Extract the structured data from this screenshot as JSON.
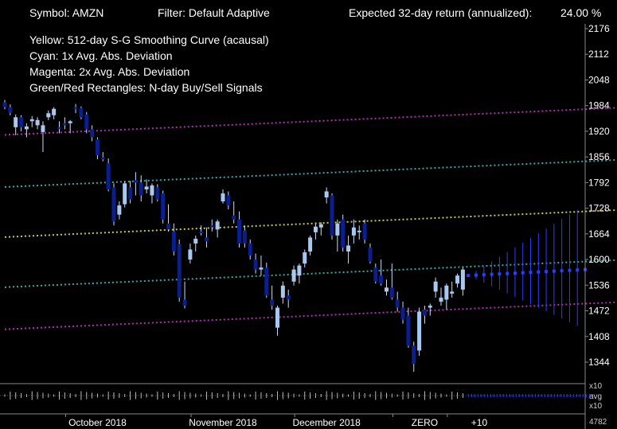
{
  "header": {
    "symbol": "Symbol: AMZN",
    "filter": "Filter: Default Adaptive",
    "expected_label": "Expected 32-day return (annualized):",
    "expected_value": "24.00 %"
  },
  "legend": [
    "Yellow: 512-day S-G Smoothing Curve (acausal)",
    "Cyan:      1x Avg. Abs. Deviation",
    "Magenta: 2x Avg. Abs. Deviation",
    "Green/Red Rectangles: N-day Buy/Sell Signals"
  ],
  "colors": {
    "background": "#000000",
    "bull_candle": "#a8c8f0",
    "bear_candle": "#0a1e8c",
    "smoothing": "#c8c850",
    "dev1": "#3aa8a8",
    "dev2": "#b030b0",
    "forecast": "#2a3cff",
    "text": "#ffffff"
  },
  "chart_data": {
    "type": "candlestick",
    "ylim": [
      1280,
      2200
    ],
    "y_ticks": [
      2176,
      2112,
      2048,
      1984,
      1920,
      1856,
      1792,
      1728,
      1664,
      1600,
      1536,
      1472,
      1408,
      1344
    ],
    "x_labels": [
      {
        "label": "October 2018",
        "at": 17
      },
      {
        "label": "November 2018",
        "at": 40
      },
      {
        "label": "December 2018",
        "at": 59
      },
      {
        "label": "ZERO",
        "at": 77
      },
      {
        "label": "+10",
        "at": 87
      }
    ],
    "volume_axis": {
      "top": "x10",
      "mid": "avg",
      "bottom": "x10"
    },
    "volume_value": "4782",
    "candles": [
      [
        1992,
        1998,
        1975,
        1980
      ],
      [
        1980,
        1987,
        1960,
        1966
      ],
      [
        1930,
        1962,
        1910,
        1955
      ],
      [
        1955,
        1960,
        1920,
        1930
      ],
      [
        1925,
        1940,
        1905,
        1932
      ],
      [
        1945,
        1958,
        1930,
        1950
      ],
      [
        1935,
        1955,
        1925,
        1948
      ],
      [
        1918,
        1945,
        1868,
        1935
      ],
      [
        1955,
        1972,
        1948,
        1965
      ],
      [
        1960,
        1980,
        1950,
        1976
      ],
      [
        1930,
        1945,
        1915,
        1928
      ],
      [
        1940,
        1955,
        1925,
        1935
      ],
      [
        1940,
        1948,
        1915,
        1945
      ],
      [
        1980,
        1988,
        1965,
        1975
      ],
      [
        1978,
        1982,
        1950,
        1955
      ],
      [
        1962,
        1968,
        1915,
        1925
      ],
      [
        1925,
        1935,
        1895,
        1905
      ],
      [
        1900,
        1905,
        1850,
        1860
      ],
      [
        1855,
        1868,
        1845,
        1850
      ],
      [
        1840,
        1852,
        1770,
        1775
      ],
      [
        1780,
        1790,
        1685,
        1695
      ],
      [
        1712,
        1745,
        1700,
        1735
      ],
      [
        1738,
        1795,
        1730,
        1790
      ],
      [
        1780,
        1796,
        1740,
        1750
      ],
      [
        1798,
        1818,
        1760,
        1792
      ],
      [
        1792,
        1810,
        1745,
        1760
      ],
      [
        1775,
        1800,
        1765,
        1782
      ],
      [
        1760,
        1790,
        1740,
        1785
      ],
      [
        1780,
        1788,
        1745,
        1750
      ],
      [
        1765,
        1772,
        1690,
        1700
      ],
      [
        1690,
        1738,
        1670,
        1675
      ],
      [
        1670,
        1690,
        1610,
        1620
      ],
      [
        1638,
        1650,
        1495,
        1505
      ],
      [
        1500,
        1545,
        1478,
        1485
      ],
      [
        1600,
        1640,
        1590,
        1625
      ],
      [
        1640,
        1660,
        1620,
        1652
      ],
      [
        1670,
        1685,
        1660,
        1668
      ],
      [
        1655,
        1680,
        1630,
        1645
      ],
      [
        1685,
        1700,
        1670,
        1680
      ],
      [
        1675,
        1700,
        1655,
        1695
      ],
      [
        1745,
        1775,
        1740,
        1765
      ],
      [
        1760,
        1770,
        1725,
        1735
      ],
      [
        1710,
        1745,
        1690,
        1700
      ],
      [
        1700,
        1720,
        1630,
        1640
      ],
      [
        1672,
        1685,
        1630,
        1640
      ],
      [
        1640,
        1650,
        1600,
        1610
      ],
      [
        1600,
        1615,
        1565,
        1575
      ],
      [
        1575,
        1610,
        1560,
        1580
      ],
      [
        1580,
        1592,
        1505,
        1510
      ],
      [
        1500,
        1535,
        1475,
        1485
      ],
      [
        1430,
        1485,
        1410,
        1480
      ],
      [
        1505,
        1545,
        1490,
        1535
      ],
      [
        1510,
        1525,
        1480,
        1500
      ],
      [
        1545,
        1585,
        1535,
        1575
      ],
      [
        1560,
        1590,
        1540,
        1585
      ],
      [
        1590,
        1625,
        1580,
        1618
      ],
      [
        1620,
        1660,
        1610,
        1655
      ],
      [
        1668,
        1690,
        1650,
        1682
      ],
      [
        1680,
        1693,
        1660,
        1688
      ],
      [
        1755,
        1780,
        1740,
        1770
      ],
      [
        1760,
        1765,
        1650,
        1660
      ],
      [
        1660,
        1700,
        1620,
        1690
      ],
      [
        1700,
        1712,
        1620,
        1630
      ],
      [
        1620,
        1660,
        1590,
        1635
      ],
      [
        1660,
        1700,
        1640,
        1680
      ],
      [
        1670,
        1685,
        1650,
        1672
      ],
      [
        1690,
        1700,
        1640,
        1650
      ],
      [
        1630,
        1640,
        1590,
        1595
      ],
      [
        1580,
        1590,
        1540,
        1545
      ],
      [
        1560,
        1600,
        1535,
        1540
      ],
      [
        1520,
        1550,
        1510,
        1530
      ],
      [
        1530,
        1590,
        1500,
        1505
      ],
      [
        1500,
        1520,
        1470,
        1480
      ],
      [
        1480,
        1495,
        1440,
        1450
      ],
      [
        1460,
        1480,
        1380,
        1385
      ],
      [
        1385,
        1395,
        1320,
        1340
      ],
      [
        1373,
        1480,
        1360,
        1470
      ],
      [
        1475,
        1485,
        1440,
        1460
      ],
      [
        1480,
        1490,
        1460,
        1485
      ],
      [
        1520,
        1555,
        1505,
        1545
      ],
      [
        1495,
        1530,
        1485,
        1505
      ],
      [
        1500,
        1540,
        1475,
        1535
      ],
      [
        1515,
        1545,
        1505,
        1520
      ],
      [
        1540,
        1565,
        1530,
        1560
      ],
      [
        1525,
        1580,
        1510,
        1575
      ]
    ],
    "smoothing_line": [
      [
        0,
        1656
      ],
      [
        133,
        1736
      ]
    ],
    "dev1_lines": [
      [
        [
          0,
          1781
        ],
        [
          133,
          1861
        ]
      ],
      [
        [
          0,
          1531
        ],
        [
          133,
          1611
        ]
      ]
    ],
    "dev2_lines": [
      [
        [
          0,
          1911
        ],
        [
          133,
          1991
        ]
      ],
      [
        [
          0,
          1426
        ],
        [
          133,
          1506
        ]
      ]
    ],
    "forecast": {
      "start_index": 84,
      "steps": 15,
      "start_value": 1560,
      "end_value": 1575,
      "upper_end": 1736,
      "lower_end": 1426
    }
  }
}
